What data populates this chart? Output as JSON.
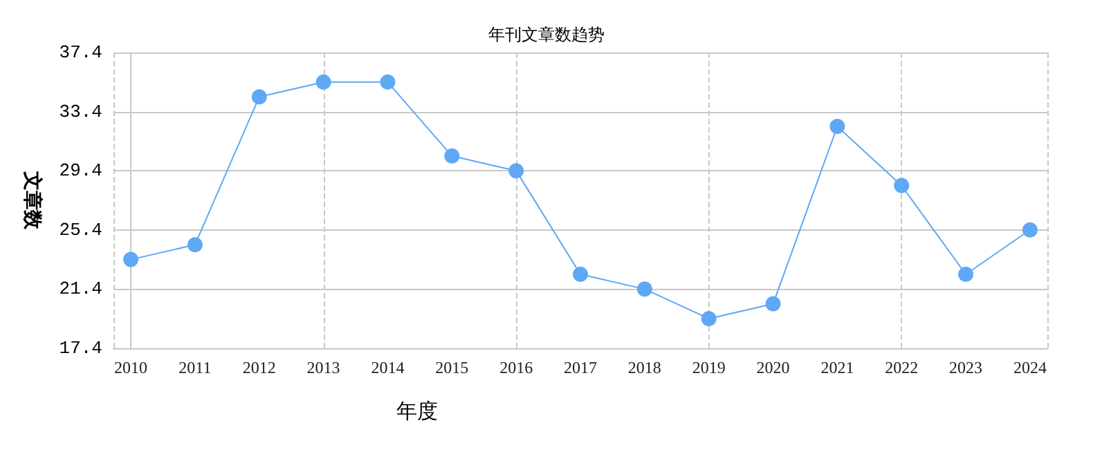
{
  "chart_data": {
    "type": "line",
    "title": "年刊文章数趋势",
    "xlabel": "年度",
    "ylabel": "文章数",
    "categories": [
      "2010",
      "2011",
      "2012",
      "2013",
      "2014",
      "2015",
      "2016",
      "2017",
      "2018",
      "2019",
      "2020",
      "2021",
      "2022",
      "2023",
      "2024"
    ],
    "series": [
      {
        "color": "#5ea8f5",
        "values": [
          23.4,
          24.4,
          34.4,
          35.4,
          35.4,
          30.4,
          29.4,
          22.4,
          21.4,
          19.4,
          20.4,
          32.4,
          28.4,
          22.4,
          25.4
        ]
      }
    ],
    "ylim": [
      17.4,
      37.4
    ],
    "yticks": [
      17.4,
      21.4,
      25.4,
      29.4,
      33.4,
      37.4
    ],
    "grid": true,
    "marker": "circle",
    "line_style": "solid"
  }
}
